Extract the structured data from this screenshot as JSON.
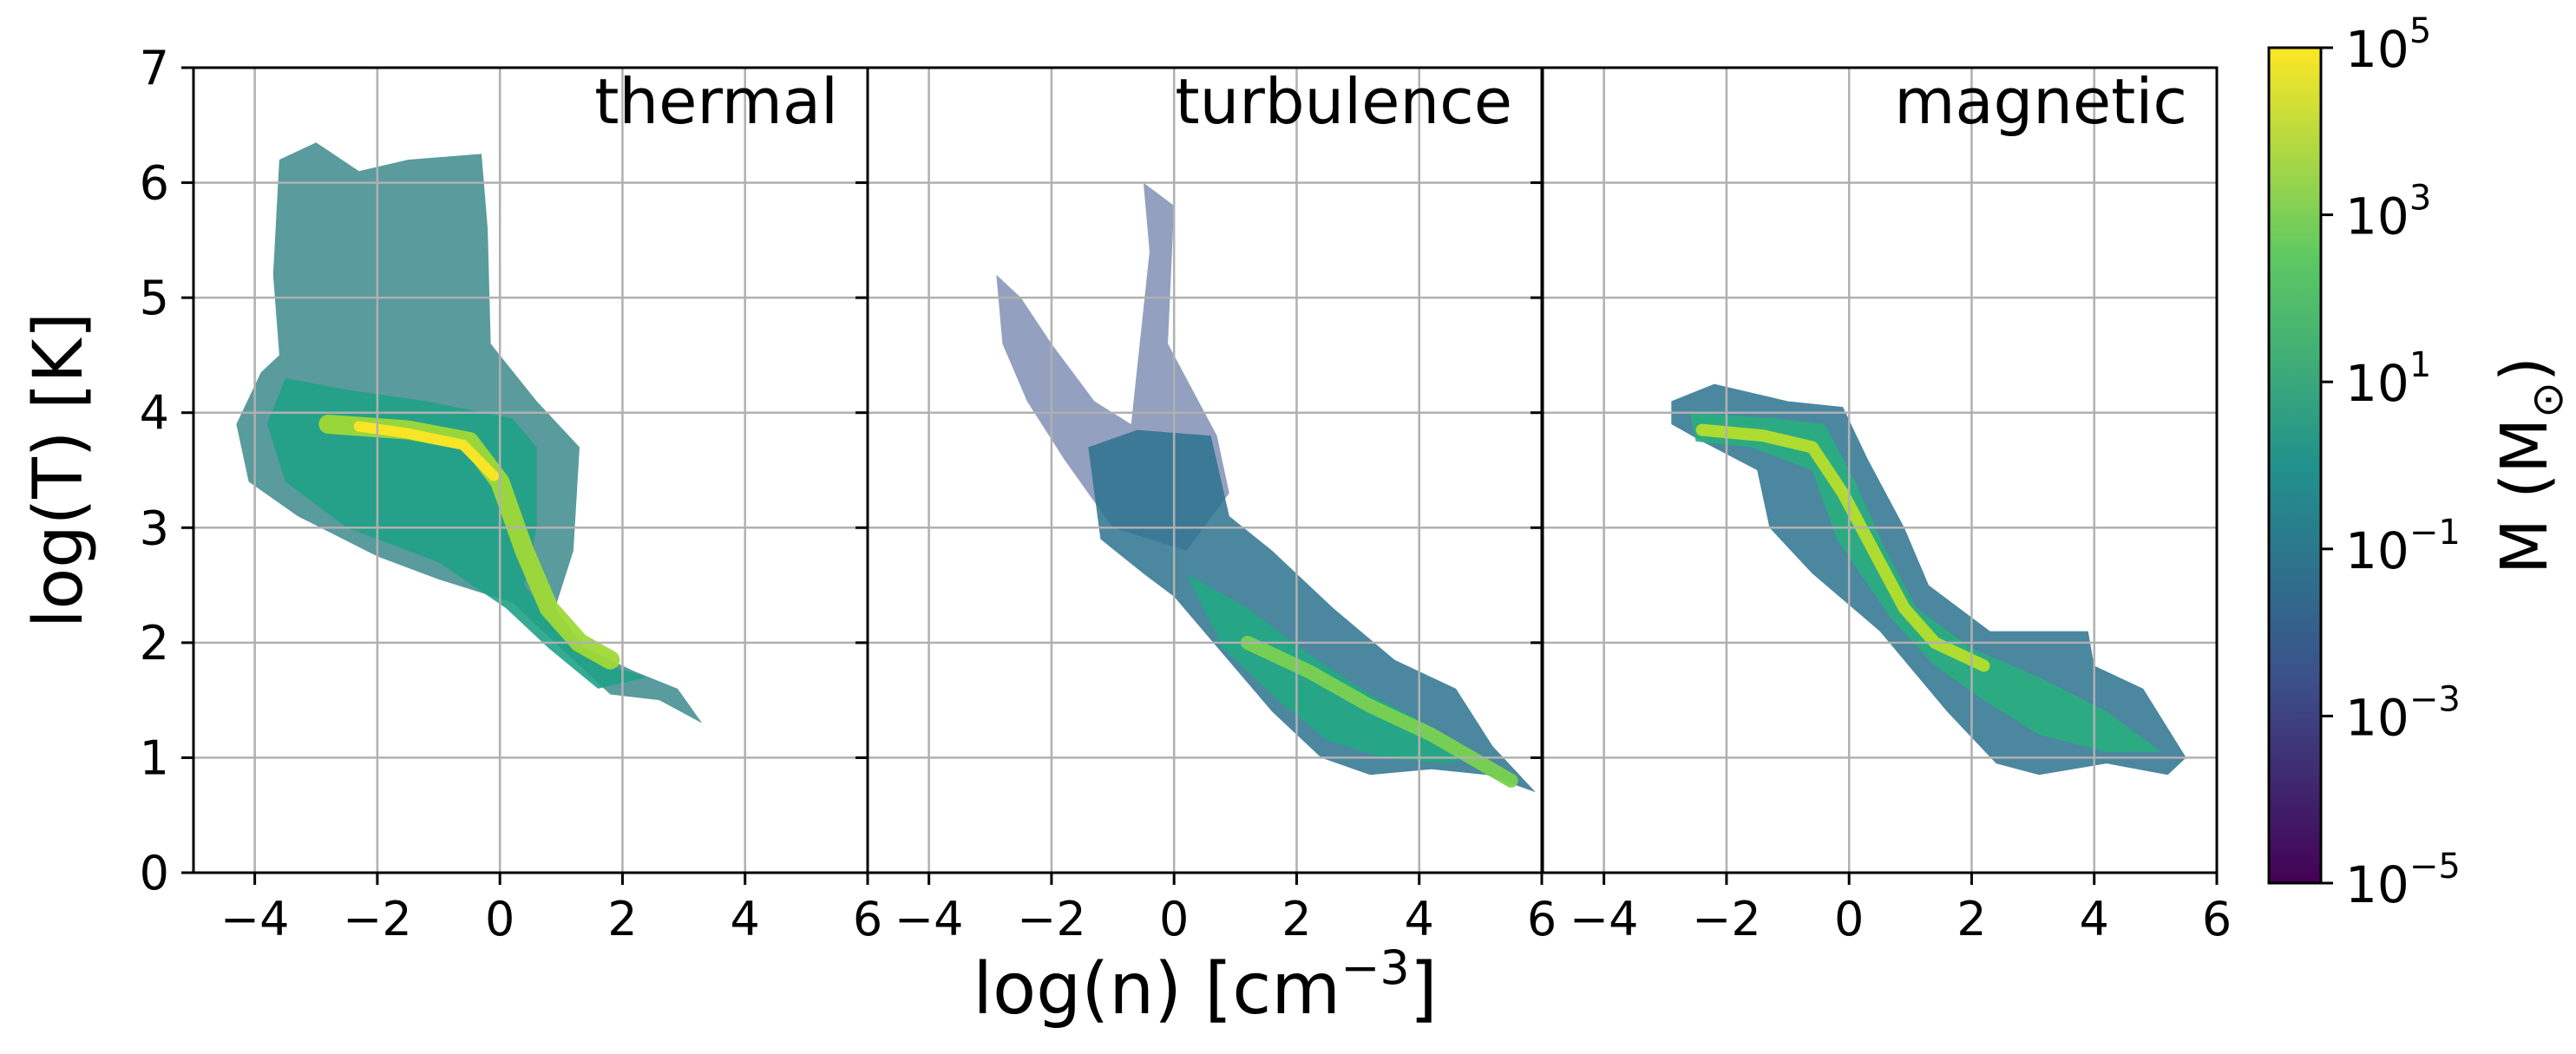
{
  "chart_data": {
    "type": "heatmap",
    "shared_ylabel": "log(T) [K]",
    "shared_xlabel_base": "log(n) [cm",
    "shared_xlabel_exp": "−3",
    "shared_xlabel_tail": "]",
    "xlim": [
      -5,
      6
    ],
    "ylim": [
      0,
      7
    ],
    "x_ticks": [
      -4,
      -2,
      0,
      2,
      4,
      6
    ],
    "x_tick_labels": [
      "−4",
      "−2",
      "0",
      "2",
      "4",
      "6"
    ],
    "y_ticks": [
      0,
      1,
      2,
      3,
      4,
      5,
      6,
      7
    ],
    "y_tick_labels": [
      "0",
      "1",
      "2",
      "3",
      "4",
      "5",
      "6",
      "7"
    ],
    "grid": true,
    "panels": [
      {
        "title": "thermal",
        "regions": [
          {
            "kind": "poly",
            "color": "#3d8a8c",
            "opacity": 0.85,
            "points": [
              [
                -4.3,
                3.9
              ],
              [
                -3.9,
                4.35
              ],
              [
                -3.6,
                4.5
              ],
              [
                -3.7,
                5.2
              ],
              [
                -3.6,
                6.2
              ],
              [
                -3.0,
                6.35
              ],
              [
                -2.3,
                6.1
              ],
              [
                -1.5,
                6.2
              ],
              [
                -0.3,
                6.25
              ],
              [
                -0.2,
                5.6
              ],
              [
                -0.15,
                4.6
              ],
              [
                0.6,
                4.1
              ],
              [
                1.3,
                3.7
              ],
              [
                1.2,
                2.8
              ],
              [
                0.9,
                2.3
              ],
              [
                1.4,
                1.95
              ],
              [
                2.2,
                1.75
              ],
              [
                2.9,
                1.6
              ],
              [
                3.3,
                1.3
              ],
              [
                2.6,
                1.5
              ],
              [
                1.8,
                1.55
              ],
              [
                1.2,
                1.85
              ],
              [
                0.2,
                2.35
              ],
              [
                -1.0,
                2.55
              ],
              [
                -2.0,
                2.75
              ],
              [
                -3.3,
                3.1
              ],
              [
                -4.1,
                3.4
              ]
            ]
          },
          {
            "kind": "poly",
            "color": "#1fa287",
            "opacity": 0.9,
            "points": [
              [
                -3.5,
                4.3
              ],
              [
                -2.5,
                4.2
              ],
              [
                -1.2,
                4.1
              ],
              [
                0.2,
                3.95
              ],
              [
                0.6,
                3.7
              ],
              [
                0.6,
                3.0
              ],
              [
                0.4,
                2.5
              ],
              [
                1.0,
                2.1
              ],
              [
                1.8,
                1.8
              ],
              [
                2.4,
                1.7
              ],
              [
                1.6,
                1.6
              ],
              [
                0.8,
                1.95
              ],
              [
                0.1,
                2.3
              ],
              [
                -1.0,
                2.7
              ],
              [
                -2.5,
                3.0
              ],
              [
                -3.5,
                3.4
              ],
              [
                -3.8,
                3.9
              ]
            ]
          },
          {
            "kind": "line",
            "color": "#9fd938",
            "width": 22,
            "points": [
              [
                -2.8,
                3.9
              ],
              [
                -1.5,
                3.85
              ],
              [
                -0.5,
                3.75
              ],
              [
                0.0,
                3.4
              ],
              [
                0.4,
                2.8
              ],
              [
                0.8,
                2.3
              ],
              [
                1.3,
                2.0
              ],
              [
                1.8,
                1.85
              ]
            ]
          },
          {
            "kind": "line",
            "color": "#fde725",
            "width": 12,
            "points": [
              [
                -2.3,
                3.88
              ],
              [
                -1.5,
                3.82
              ],
              [
                -0.6,
                3.72
              ],
              [
                -0.1,
                3.45
              ]
            ]
          }
        ]
      },
      {
        "title": "turbulence",
        "regions": [
          {
            "kind": "poly",
            "color": "#3b528b",
            "opacity": 0.55,
            "points": [
              [
                -2.9,
                5.2
              ],
              [
                -2.5,
                5.0
              ],
              [
                -2.0,
                4.6
              ],
              [
                -1.3,
                4.1
              ],
              [
                -0.7,
                3.9
              ],
              [
                -0.4,
                5.4
              ],
              [
                -0.5,
                6.0
              ],
              [
                0.0,
                5.8
              ],
              [
                -0.1,
                4.6
              ],
              [
                0.7,
                3.8
              ],
              [
                0.9,
                3.3
              ],
              [
                0.2,
                2.8
              ],
              [
                -1.0,
                3.0
              ],
              [
                -1.8,
                3.6
              ],
              [
                -2.4,
                4.1
              ],
              [
                -2.8,
                4.6
              ]
            ]
          },
          {
            "kind": "poly",
            "color": "#2c728e",
            "opacity": 0.85,
            "points": [
              [
                -1.4,
                3.7
              ],
              [
                -0.6,
                3.85
              ],
              [
                0.6,
                3.8
              ],
              [
                0.9,
                3.1
              ],
              [
                1.6,
                2.8
              ],
              [
                2.6,
                2.3
              ],
              [
                3.6,
                1.85
              ],
              [
                4.6,
                1.6
              ],
              [
                5.2,
                1.1
              ],
              [
                5.9,
                0.7
              ],
              [
                5.1,
                0.85
              ],
              [
                4.2,
                0.9
              ],
              [
                3.2,
                0.85
              ],
              [
                2.4,
                1.0
              ],
              [
                1.6,
                1.4
              ],
              [
                0.8,
                1.9
              ],
              [
                0.0,
                2.4
              ],
              [
                -0.5,
                2.6
              ],
              [
                -1.2,
                2.9
              ]
            ]
          },
          {
            "kind": "poly",
            "color": "#22a884",
            "opacity": 0.9,
            "points": [
              [
                0.2,
                2.6
              ],
              [
                1.2,
                2.3
              ],
              [
                2.2,
                1.9
              ],
              [
                3.2,
                1.55
              ],
              [
                4.1,
                1.3
              ],
              [
                5.0,
                1.0
              ],
              [
                4.4,
                0.95
              ],
              [
                3.4,
                1.0
              ],
              [
                2.5,
                1.15
              ],
              [
                1.7,
                1.5
              ],
              [
                0.8,
                1.95
              ]
            ]
          },
          {
            "kind": "line",
            "color": "#7ad151",
            "width": 16,
            "points": [
              [
                1.2,
                2.0
              ],
              [
                2.2,
                1.75
              ],
              [
                3.2,
                1.45
              ],
              [
                4.2,
                1.2
              ],
              [
                5.5,
                0.8
              ]
            ]
          }
        ]
      },
      {
        "title": "magnetic",
        "regions": [
          {
            "kind": "poly",
            "color": "#2c728e",
            "opacity": 0.85,
            "points": [
              [
                -2.9,
                4.1
              ],
              [
                -2.2,
                4.25
              ],
              [
                -1.0,
                4.1
              ],
              [
                -0.1,
                4.05
              ],
              [
                0.3,
                3.6
              ],
              [
                0.9,
                3.0
              ],
              [
                1.3,
                2.5
              ],
              [
                2.3,
                2.1
              ],
              [
                3.9,
                2.1
              ],
              [
                4.0,
                1.8
              ],
              [
                4.8,
                1.6
              ],
              [
                5.5,
                1.0
              ],
              [
                5.2,
                0.85
              ],
              [
                4.2,
                0.95
              ],
              [
                3.1,
                0.85
              ],
              [
                2.4,
                0.95
              ],
              [
                1.6,
                1.4
              ],
              [
                0.5,
                2.1
              ],
              [
                -0.6,
                2.6
              ],
              [
                -1.3,
                3.0
              ],
              [
                -1.5,
                3.5
              ],
              [
                -2.4,
                3.75
              ],
              [
                -2.9,
                3.9
              ]
            ]
          },
          {
            "kind": "poly",
            "color": "#29af7f",
            "opacity": 0.9,
            "points": [
              [
                -2.6,
                4.0
              ],
              [
                -1.2,
                3.95
              ],
              [
                -0.4,
                3.9
              ],
              [
                0.1,
                3.4
              ],
              [
                0.6,
                2.8
              ],
              [
                1.1,
                2.3
              ],
              [
                2.0,
                1.95
              ],
              [
                3.1,
                1.7
              ],
              [
                4.2,
                1.4
              ],
              [
                5.1,
                1.05
              ],
              [
                4.2,
                1.05
              ],
              [
                3.1,
                1.2
              ],
              [
                2.2,
                1.5
              ],
              [
                1.4,
                1.8
              ],
              [
                0.7,
                2.2
              ],
              [
                -0.2,
                2.9
              ],
              [
                -0.6,
                3.5
              ],
              [
                -1.6,
                3.7
              ],
              [
                -2.5,
                3.75
              ]
            ]
          },
          {
            "kind": "line",
            "color": "#b5de2b",
            "width": 14,
            "points": [
              [
                -2.4,
                3.85
              ],
              [
                -1.4,
                3.8
              ],
              [
                -0.6,
                3.7
              ],
              [
                -0.1,
                3.3
              ],
              [
                0.4,
                2.8
              ],
              [
                0.9,
                2.3
              ],
              [
                1.4,
                2.0
              ],
              [
                2.2,
                1.8
              ]
            ]
          }
        ]
      }
    ],
    "colorbar": {
      "label_base": "M (M",
      "label_sub": "⊙",
      "label_tail": ")",
      "scale": "log",
      "range": [
        -5,
        5
      ],
      "ticks": [
        -5,
        -3,
        -1,
        1,
        3,
        5
      ],
      "colormap": [
        "#440154",
        "#3b528b",
        "#21918c",
        "#5ec962",
        "#fde725"
      ]
    }
  }
}
